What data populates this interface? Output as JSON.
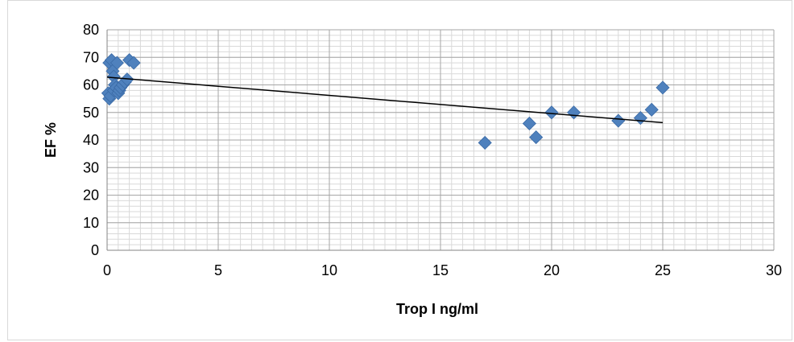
{
  "chart_data": {
    "type": "scatter",
    "xlabel": "Trop I ng/ml",
    "ylabel": "EF %",
    "xlim": [
      0,
      30
    ],
    "ylim": [
      0,
      80
    ],
    "x_ticks": [
      0,
      5,
      10,
      15,
      20,
      25,
      30
    ],
    "y_ticks": [
      0,
      10,
      20,
      30,
      40,
      50,
      60,
      70,
      80
    ],
    "grid": true,
    "marker_color": "#4f81bd",
    "trendline_color": "#000000",
    "series": [
      {
        "points": [
          [
            0.05,
            57
          ],
          [
            0.1,
            55
          ],
          [
            0.1,
            68
          ],
          [
            0.15,
            56
          ],
          [
            0.2,
            69
          ],
          [
            0.25,
            65
          ],
          [
            0.3,
            58
          ],
          [
            0.3,
            63
          ],
          [
            0.35,
            60
          ],
          [
            0.4,
            59
          ],
          [
            0.45,
            68
          ],
          [
            0.5,
            57
          ],
          [
            0.55,
            58
          ],
          [
            0.6,
            59
          ],
          [
            0.7,
            60
          ],
          [
            0.8,
            61
          ],
          [
            0.9,
            62
          ],
          [
            1.0,
            69
          ],
          [
            1.2,
            68
          ],
          [
            17,
            39
          ],
          [
            19,
            46
          ],
          [
            19.3,
            41
          ],
          [
            20,
            50
          ],
          [
            21,
            50
          ],
          [
            23,
            47
          ],
          [
            24,
            48
          ],
          [
            24.5,
            51
          ],
          [
            25,
            59
          ]
        ]
      }
    ],
    "trendline": {
      "x": [
        0,
        25
      ],
      "y": [
        62.8,
        46.3
      ]
    }
  }
}
